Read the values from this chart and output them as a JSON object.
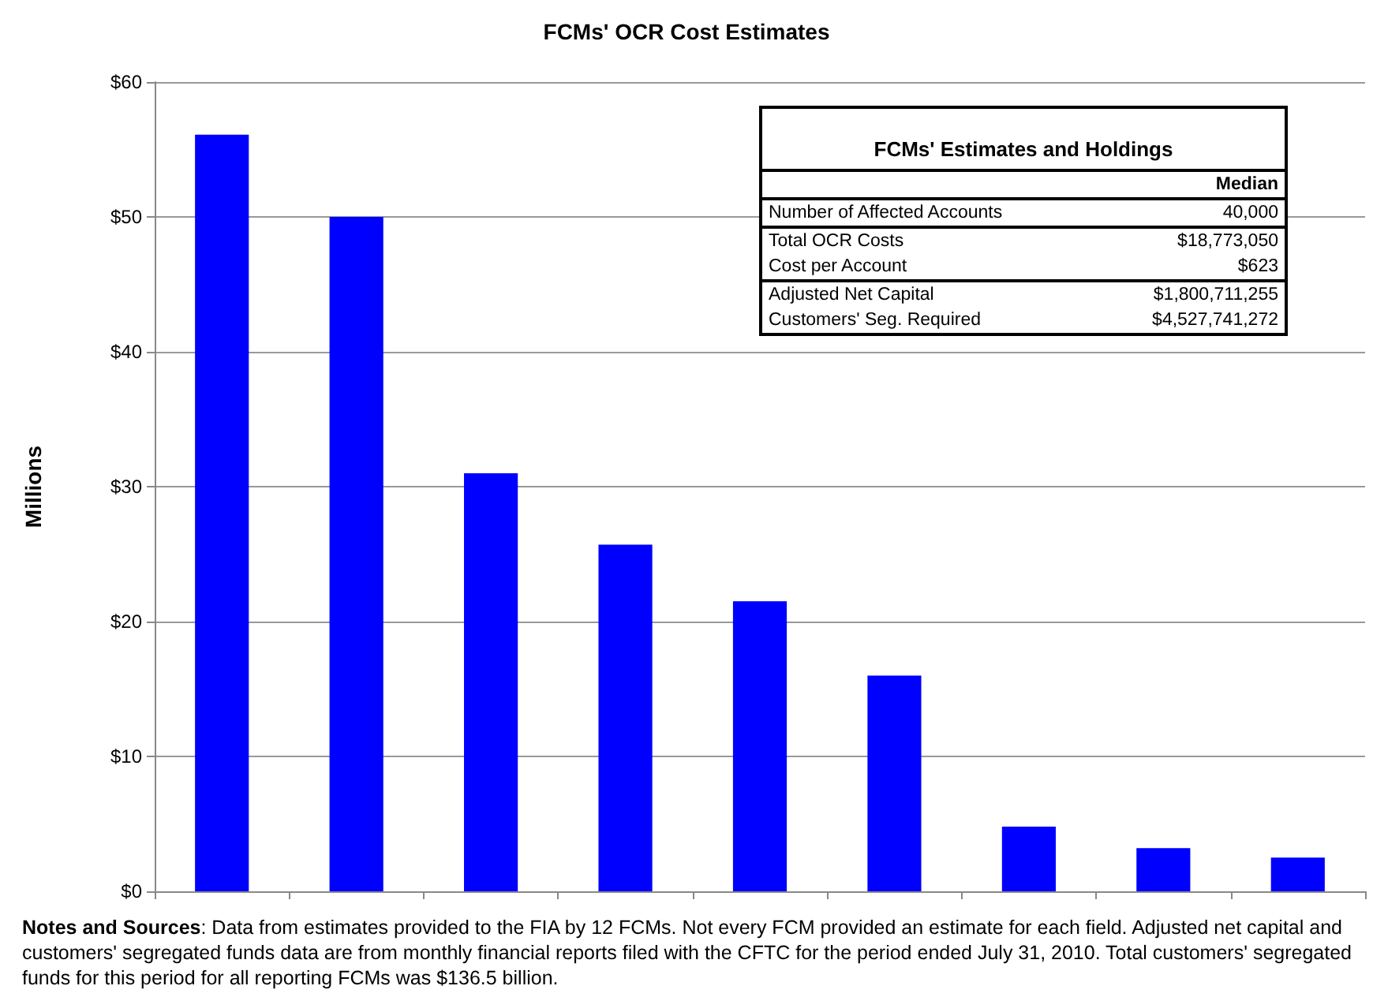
{
  "chart_data": [
    {
      "type": "bar",
      "title": "FCMs' OCR Cost Estimates",
      "ylabel": "Millions",
      "categories": [
        null,
        null,
        null,
        null,
        null,
        null,
        null,
        null,
        null
      ],
      "values": [
        56.1,
        50.0,
        31.0,
        25.7,
        21.5,
        16.0,
        4.8,
        3.2,
        2.5
      ],
      "color": "#0000ff",
      "ylim": [
        0,
        60
      ],
      "yticks": [
        {
          "value": 0,
          "label": "$0"
        },
        {
          "value": 10,
          "label": "$10"
        },
        {
          "value": 20,
          "label": "$20"
        },
        {
          "value": 30,
          "label": "$30"
        },
        {
          "value": 40,
          "label": "$40"
        },
        {
          "value": 50,
          "label": "$50"
        },
        {
          "value": 60,
          "label": "$60"
        }
      ],
      "grid": "y",
      "annotations": [
        "Notes and Sources: Data from estimates provided to the FIA by 12 FCMs. Not every FCM provided an estimate for each field. Adjusted net capital and customers' segregated funds data are from monthly financial reports filed with the CFTC for the period ended July 31, 2010. Total customers' segregated funds for this period for all reporting FCMs was $136.5 billion."
      ]
    },
    {
      "type": "other",
      "title": "FCMs' Estimates and Holdings",
      "annotations": [
        "Median",
        "Number of Affected Accounts",
        "40,000",
        "Total OCR Costs",
        "$18,773,050",
        "Cost per Account",
        "$623",
        "Adjusted Net Capital",
        "$1,800,711,255",
        "Customers' Seg. Required",
        "$4,527,741,272"
      ]
    }
  ]
}
